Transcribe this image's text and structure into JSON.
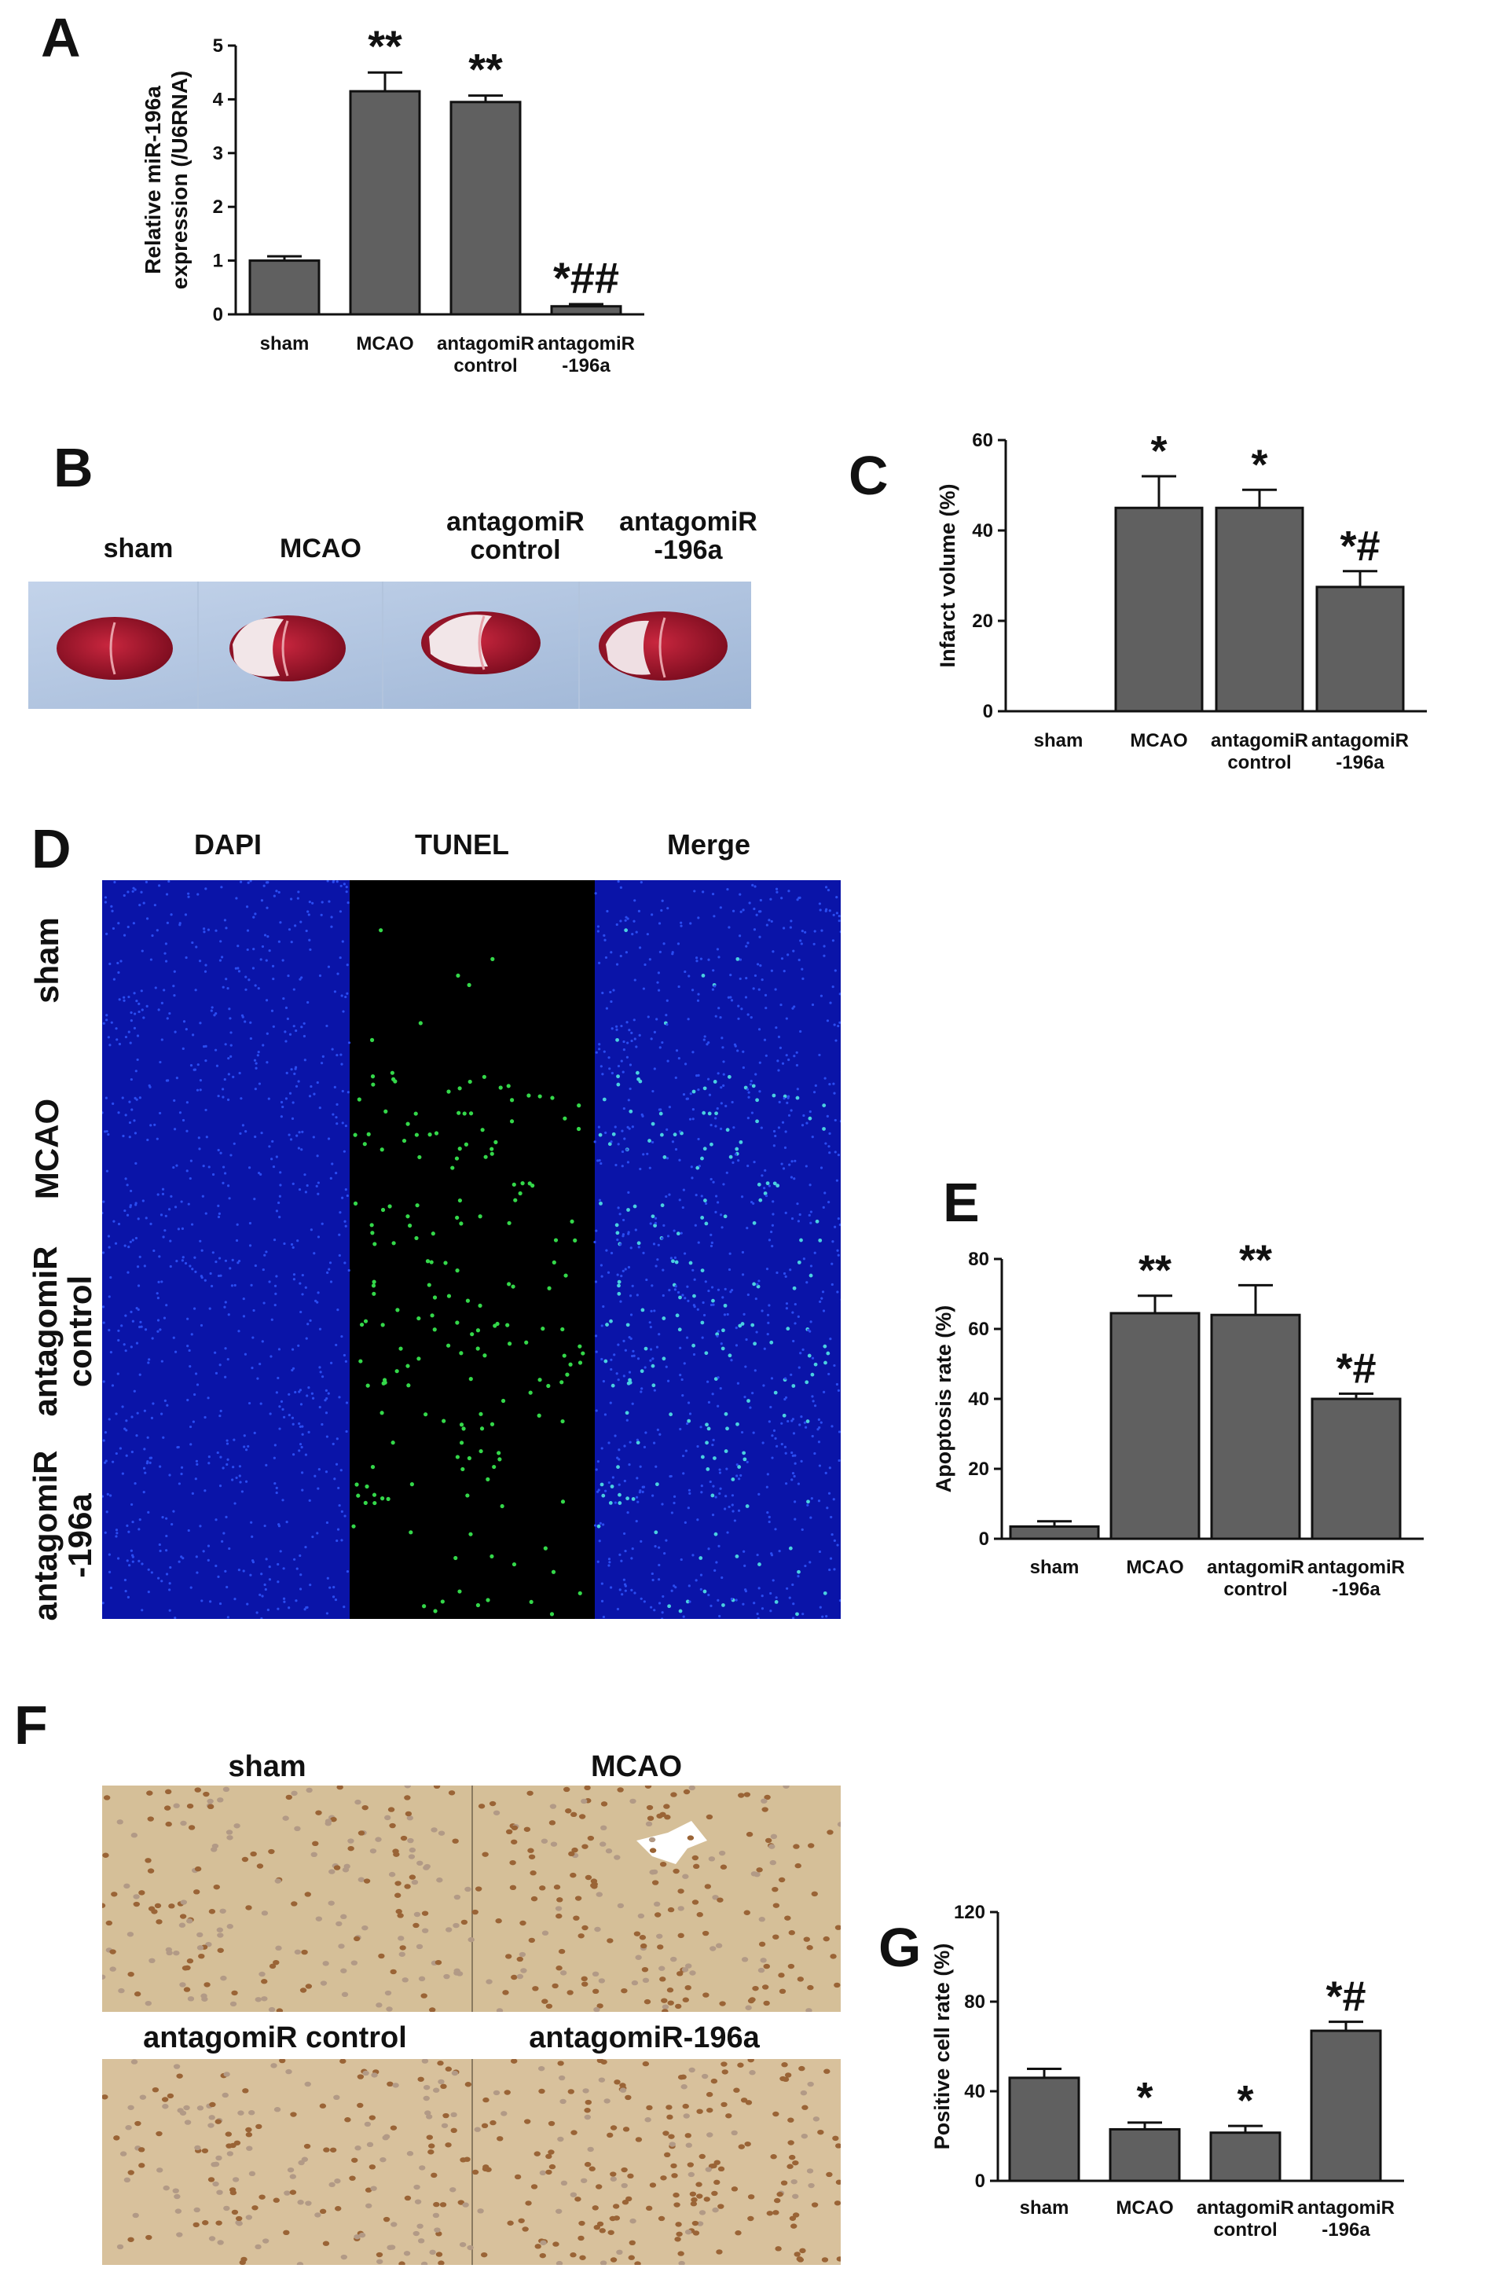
{
  "panels": {
    "A": {
      "letter": "A"
    },
    "B": {
      "letter": "B"
    },
    "C": {
      "letter": "C"
    },
    "D": {
      "letter": "D"
    },
    "E": {
      "letter": "E"
    },
    "F": {
      "letter": "F"
    },
    "G": {
      "letter": "G"
    }
  },
  "groups": [
    "sham",
    "MCAO",
    "antagomiR\ncontrol",
    "antagomiR\n-196a"
  ],
  "panel_b": {
    "labels": [
      "sham",
      "MCAO",
      "antagomiR\ncontrol",
      "antagomiR\n-196a"
    ]
  },
  "panel_d": {
    "columns": [
      "DAPI",
      "TUNEL",
      "Merge"
    ],
    "rows": [
      "sham",
      "MCAO",
      "antagomiR\ncontrol",
      "antagomiR\n-196a"
    ]
  },
  "panel_f": {
    "labels": [
      "sham",
      "MCAO",
      "antagomiR control",
      "antagomiR-196a"
    ]
  },
  "colors": {
    "bar": "#606060",
    "dapi": "#0a14a8",
    "tunel_bg": "#000000",
    "tunel_dot": "#34d84a",
    "tissue": "#d7c09a",
    "brain_red": "#a8142c",
    "brain_bg": "#aec4e0"
  },
  "chart_data": [
    {
      "panel": "A",
      "type": "bar",
      "categories": [
        "sham",
        "MCAO",
        "antagomiR\ncontrol",
        "antagomiR\n-196a"
      ],
      "values": [
        1.0,
        4.15,
        3.95,
        0.15
      ],
      "errors": [
        0.08,
        0.35,
        0.12,
        0.04
      ],
      "annotations": [
        "",
        "**",
        "**",
        "*##"
      ],
      "ylabel": "Relative miR-196a\nexpression (/U6RNA)",
      "ylim": [
        0,
        5
      ],
      "yticks": [
        "0",
        "1",
        "2",
        "3",
        "4",
        "5"
      ]
    },
    {
      "panel": "C",
      "type": "bar",
      "categories": [
        "sham",
        "MCAO",
        "antagomiR\ncontrol",
        "antagomiR\n-196a"
      ],
      "values": [
        0,
        45,
        45,
        27.5
      ],
      "errors": [
        0,
        7,
        4,
        3.5
      ],
      "annotations": [
        "",
        "*",
        "*",
        "*#"
      ],
      "ylabel": "Infarct volume (%)",
      "ylim": [
        0,
        60
      ],
      "yticks": [
        "0",
        "20",
        "40",
        "60"
      ]
    },
    {
      "panel": "E",
      "type": "bar",
      "categories": [
        "sham",
        "MCAO",
        "antagomiR\ncontrol",
        "antagomiR\n-196a"
      ],
      "values": [
        3.5,
        64.5,
        64,
        40
      ],
      "errors": [
        1.5,
        5,
        8.5,
        1.5
      ],
      "annotations": [
        "",
        "**",
        "**",
        "*#"
      ],
      "ylabel": "Apoptosis rate (%)",
      "ylim": [
        0,
        80
      ],
      "yticks": [
        "0",
        "20",
        "40",
        "60",
        "80"
      ]
    },
    {
      "panel": "G",
      "type": "bar",
      "categories": [
        "sham",
        "MCAO",
        "antagomiR\ncontrol",
        "antagomiR\n-196a"
      ],
      "values": [
        46,
        23,
        21.5,
        67
      ],
      "errors": [
        4,
        3,
        3,
        4
      ],
      "annotations": [
        "",
        "*",
        "*",
        "*#"
      ],
      "ylabel": "Positive cell rate (%)",
      "ylim": [
        0,
        120
      ],
      "yticks": [
        "0",
        "40",
        "80",
        "120"
      ]
    }
  ]
}
